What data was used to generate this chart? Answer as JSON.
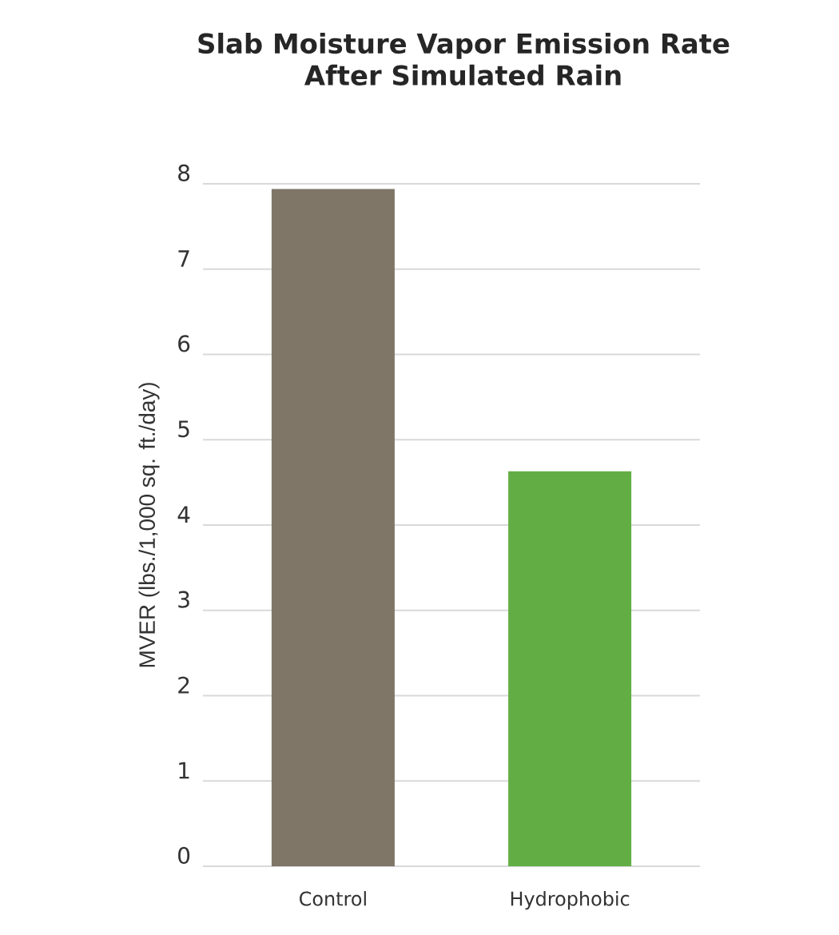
{
  "chart_data": {
    "type": "bar",
    "title": "Slab Moisture Vapor Emission Rate\nAfter Simulated Rain",
    "ylabel": "MVER (lbs./1,000 sq. ft./day)",
    "categories": [
      "Control",
      "Hydrophobic"
    ],
    "values": [
      7.94,
      4.63
    ],
    "colors": [
      "#7f7668",
      "#62ae45"
    ],
    "ylim": [
      0,
      8
    ],
    "yticks": [
      0,
      1,
      2,
      3,
      4,
      5,
      6,
      7,
      8
    ],
    "grid": "y"
  }
}
